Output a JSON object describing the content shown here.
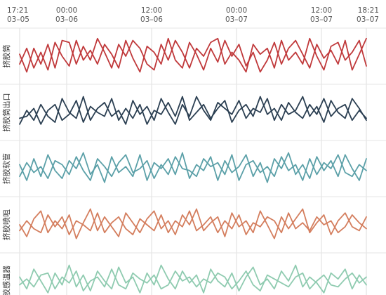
{
  "chart_data": {
    "type": "line",
    "layout": "vertically stacked small multiples, one band per group, shared time axis on top",
    "grid": true,
    "x_axis": {
      "position": "top",
      "range": [
        "03-05 17:21",
        "03-07 18:21"
      ],
      "ticks": [
        {
          "time": "17:21",
          "date": "03–05",
          "t": "03-05 17:21"
        },
        {
          "time": "00:00",
          "date": "03–06",
          "t": "03-06 00:00"
        },
        {
          "time": "12:00",
          "date": "03–06",
          "t": "03-06 12:00"
        },
        {
          "time": "00:00",
          "date": "03–07",
          "t": "03-07 00:00"
        },
        {
          "time": "12:00",
          "date": "03–07",
          "t": "03-07 12:00"
        },
        {
          "time": "18:21",
          "date": "03–07",
          "t": "03-07 18:21"
        }
      ]
    },
    "groups": [
      {
        "label": "挤胶筒",
        "color": "#c0393b",
        "series": [
          {
            "values": [
              0.55,
              0.1,
              0.7,
              0.3,
              0.8,
              0.2,
              0.9,
              0.85,
              0.3,
              0.75,
              0.4,
              0.95,
              0.6,
              0.2,
              0.8,
              0.5,
              0.9,
              0.7,
              0.3,
              0.15,
              0.8,
              0.4,
              0.9,
              0.6,
              0.2,
              0.7,
              0.5,
              0.85,
              0.95,
              0.3,
              0.6,
              0.4,
              0.1,
              0.8,
              0.55,
              0.7,
              0.2,
              0.9,
              0.4,
              0.6,
              0.3,
              0.95,
              0.5,
              0.15,
              0.75,
              0.85,
              0.4,
              0.6,
              0.9,
              0.25
            ]
          },
          {
            "values": [
              0.3,
              0.7,
              0.2,
              0.6,
              0.15,
              0.85,
              0.5,
              0.25,
              0.9,
              0.4,
              0.65,
              0.3,
              0.8,
              0.55,
              0.2,
              0.9,
              0.45,
              0.1,
              0.75,
              0.6,
              0.3,
              0.95,
              0.4,
              0.2,
              0.85,
              0.55,
              0.15,
              0.7,
              0.35,
              0.9,
              0.5,
              0.8,
              0.25,
              0.6,
              0.1,
              0.4,
              0.85,
              0.3,
              0.7,
              0.9,
              0.55,
              0.2,
              0.8,
              0.45,
              0.65,
              0.3,
              0.9,
              0.15,
              0.55,
              0.95
            ]
          }
        ]
      },
      {
        "label": "挤胶筒出口",
        "color": "#2b3f52",
        "series": [
          {
            "values": [
              0.2,
              0.55,
              0.3,
              0.7,
              0.4,
              0.25,
              0.85,
              0.5,
              0.35,
              0.9,
              0.3,
              0.6,
              0.75,
              0.4,
              0.55,
              0.2,
              0.8,
              0.45,
              0.65,
              0.3,
              0.85,
              0.5,
              0.2,
              0.7,
              0.4,
              0.9,
              0.55,
              0.3,
              0.75,
              0.6,
              0.45,
              0.8,
              0.35,
              0.6,
              0.5,
              0.85,
              0.3,
              0.7,
              0.45,
              0.55,
              0.9,
              0.4,
              0.65,
              0.25,
              0.8,
              0.5,
              0.35,
              0.85,
              0.6,
              0.3
            ]
          },
          {
            "values": [
              0.35,
              0.4,
              0.6,
              0.2,
              0.55,
              0.7,
              0.3,
              0.45,
              0.8,
              0.25,
              0.65,
              0.5,
              0.4,
              0.85,
              0.3,
              0.6,
              0.35,
              0.7,
              0.2,
              0.55,
              0.45,
              0.75,
              0.4,
              0.9,
              0.3,
              0.5,
              0.7,
              0.35,
              0.6,
              0.8,
              0.25,
              0.55,
              0.7,
              0.4,
              0.9,
              0.45,
              0.6,
              0.3,
              0.75,
              0.5,
              0.35,
              0.7,
              0.45,
              0.85,
              0.4,
              0.6,
              0.7,
              0.3,
              0.55,
              0.35
            ]
          }
        ]
      },
      {
        "label": "挤胶软管",
        "color": "#5ba0a8",
        "series": [
          {
            "values": [
              0.6,
              0.2,
              0.75,
              0.3,
              0.85,
              0.45,
              0.25,
              0.7,
              0.5,
              0.9,
              0.35,
              0.6,
              0.15,
              0.8,
              0.4,
              0.55,
              0.3,
              0.85,
              0.2,
              0.65,
              0.5,
              0.75,
              0.35,
              0.9,
              0.25,
              0.6,
              0.45,
              0.8,
              0.2,
              0.7,
              0.4,
              0.55,
              0.85,
              0.3,
              0.65,
              0.15,
              0.75,
              0.5,
              0.9,
              0.35,
              0.6,
              0.25,
              0.8,
              0.45,
              0.7,
              0.3,
              0.85,
              0.5,
              0.2,
              0.75
            ]
          },
          {
            "values": [
              0.3,
              0.65,
              0.4,
              0.55,
              0.25,
              0.7,
              0.6,
              0.35,
              0.8,
              0.45,
              0.2,
              0.75,
              0.55,
              0.3,
              0.65,
              0.85,
              0.4,
              0.5,
              0.7,
              0.25,
              0.6,
              0.35,
              0.8,
              0.5,
              0.45,
              0.3,
              0.75,
              0.55,
              0.65,
              0.35,
              0.85,
              0.2,
              0.6,
              0.7,
              0.4,
              0.55,
              0.3,
              0.8,
              0.45,
              0.6,
              0.2,
              0.75,
              0.35,
              0.65,
              0.5,
              0.85,
              0.4,
              0.3,
              0.6,
              0.45
            ]
          }
        ]
      },
      {
        "label": "挤胶喷咀",
        "color": "#d47e5e",
        "series": [
          {
            "values": [
              0.5,
              0.2,
              0.65,
              0.85,
              0.3,
              0.6,
              0.4,
              0.75,
              0.15,
              0.55,
              0.9,
              0.35,
              0.7,
              0.45,
              0.2,
              0.8,
              0.55,
              0.3,
              0.65,
              0.85,
              0.4,
              0.6,
              0.25,
              0.75,
              0.5,
              0.9,
              0.35,
              0.55,
              0.7,
              0.2,
              0.8,
              0.45,
              0.6,
              0.3,
              0.85,
              0.5,
              0.15,
              0.7,
              0.4,
              0.65,
              0.9,
              0.3,
              0.55,
              0.75,
              0.25,
              0.6,
              0.8,
              0.45,
              0.35,
              0.7
            ]
          },
          {
            "values": [
              0.35,
              0.6,
              0.4,
              0.3,
              0.75,
              0.45,
              0.7,
              0.25,
              0.6,
              0.5,
              0.35,
              0.8,
              0.3,
              0.55,
              0.7,
              0.4,
              0.25,
              0.65,
              0.5,
              0.35,
              0.75,
              0.3,
              0.6,
              0.45,
              0.85,
              0.35,
              0.5,
              0.7,
              0.3,
              0.6,
              0.4,
              0.75,
              0.25,
              0.55,
              0.45,
              0.7,
              0.6,
              0.3,
              0.8,
              0.4,
              0.55,
              0.35,
              0.7,
              0.5,
              0.6,
              0.3,
              0.45,
              0.75,
              0.55,
              0.4
            ]
          }
        ]
      },
      {
        "label": "胶感温器",
        "color": "#8fcbb0",
        "series": [
          {
            "values": [
              0.6,
              0.3,
              0.8,
              0.5,
              0.2,
              0.7,
              0.4,
              0.9,
              0.35,
              0.65,
              0.25,
              0.75,
              0.5,
              0.3,
              0.85,
              0.45,
              0.6,
              0.2,
              0.7,
              0.4,
              0.9,
              0.55,
              0.3,
              0.75,
              0.45,
              0.65,
              0.2,
              0.8,
              0.5,
              0.35,
              0.7,
              0.25,
              0.6,
              0.85,
              0.4,
              0.55,
              0.3,
              0.75,
              0.5,
              0.9,
              0.35,
              0.6,
              0.45,
              0.2,
              0.7,
              0.55,
              0.8,
              0.3,
              0.65,
              0.4
            ]
          },
          {
            "values": [
              0.4,
              0.55,
              0.35,
              0.65,
              0.7,
              0.3,
              0.6,
              0.45,
              0.75,
              0.25,
              0.5,
              0.6,
              0.35,
              0.8,
              0.4,
              0.3,
              0.7,
              0.55,
              0.45,
              0.65,
              0.3,
              0.4,
              0.75,
              0.5,
              0.6,
              0.35,
              0.55,
              0.45,
              0.7,
              0.6,
              0.3,
              0.5,
              0.75,
              0.4,
              0.25,
              0.65,
              0.55,
              0.45,
              0.35,
              0.6,
              0.7,
              0.3,
              0.5,
              0.65,
              0.4,
              0.35,
              0.55,
              0.7,
              0.45,
              0.6
            ]
          }
        ]
      }
    ]
  }
}
